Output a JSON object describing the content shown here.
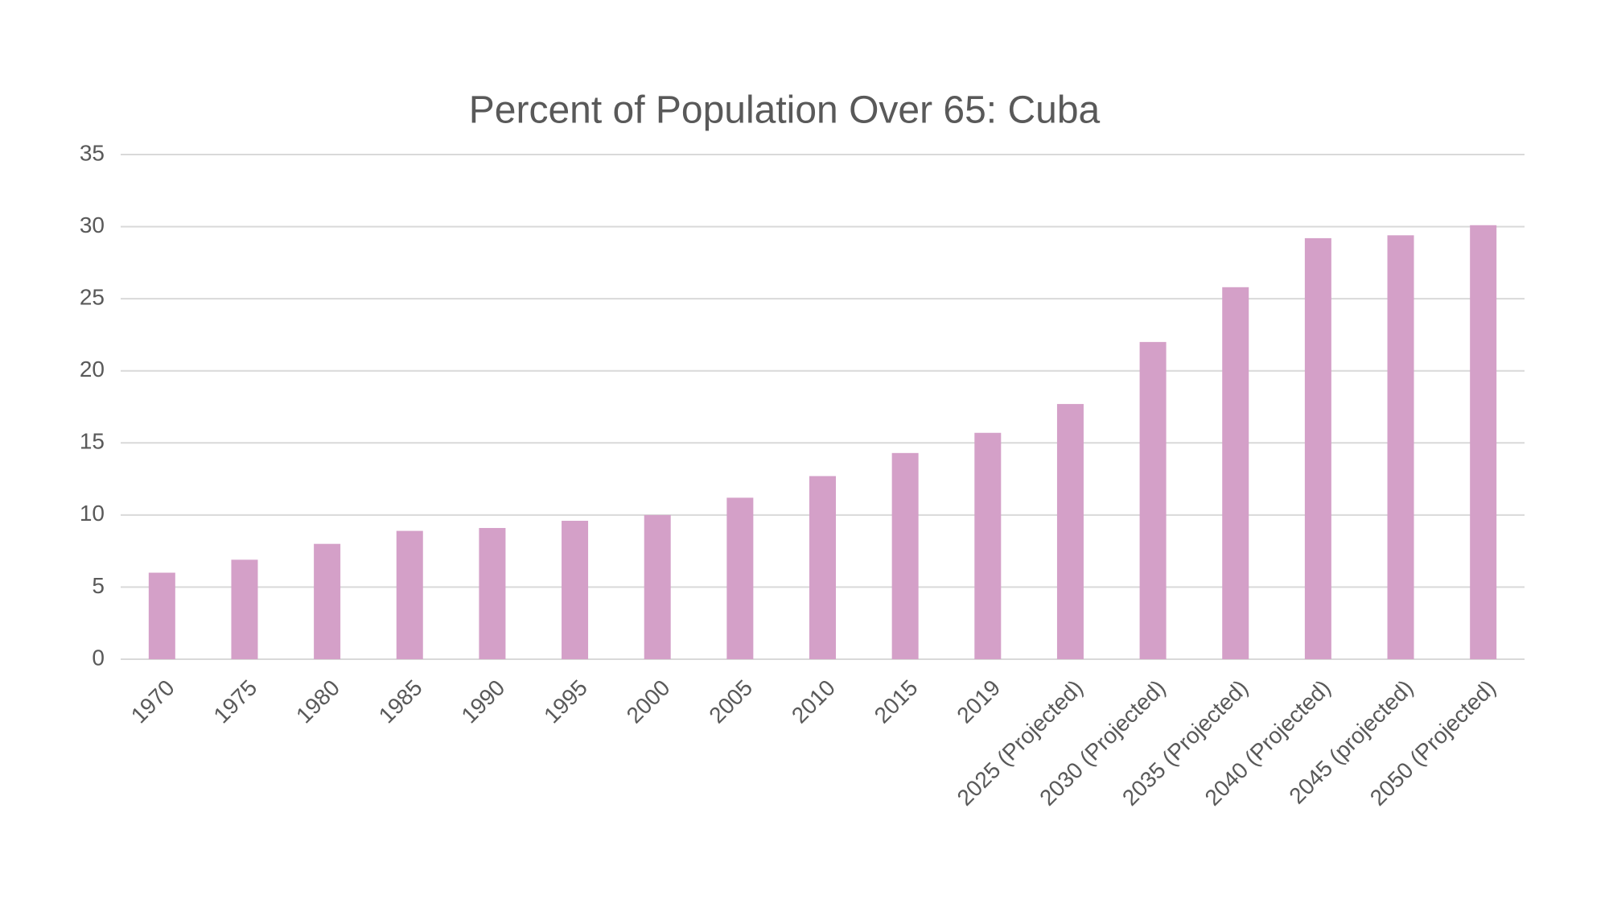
{
  "chart_data": {
    "type": "bar",
    "title": "Percent of Population Over 65: Cuba",
    "categories": [
      "1970",
      "1975",
      "1980",
      "1985",
      "1990",
      "1995",
      "2000",
      "2005",
      "2010",
      "2015",
      "2019",
      "2025 (Projected)",
      "2030 (Projected)",
      "2035 (Projected)",
      "2040 (Projected)",
      "2045 (projected)",
      "2050 (Projected)"
    ],
    "values": [
      6.0,
      6.9,
      8.0,
      8.9,
      9.1,
      9.6,
      10.0,
      11.2,
      12.7,
      14.3,
      15.7,
      17.7,
      22.0,
      25.8,
      29.2,
      29.4,
      30.1
    ],
    "color": "#d4a0c8",
    "ylim": [
      0,
      35
    ],
    "yticks": [
      0,
      5,
      10,
      15,
      20,
      25,
      30,
      35
    ],
    "grid": true
  }
}
